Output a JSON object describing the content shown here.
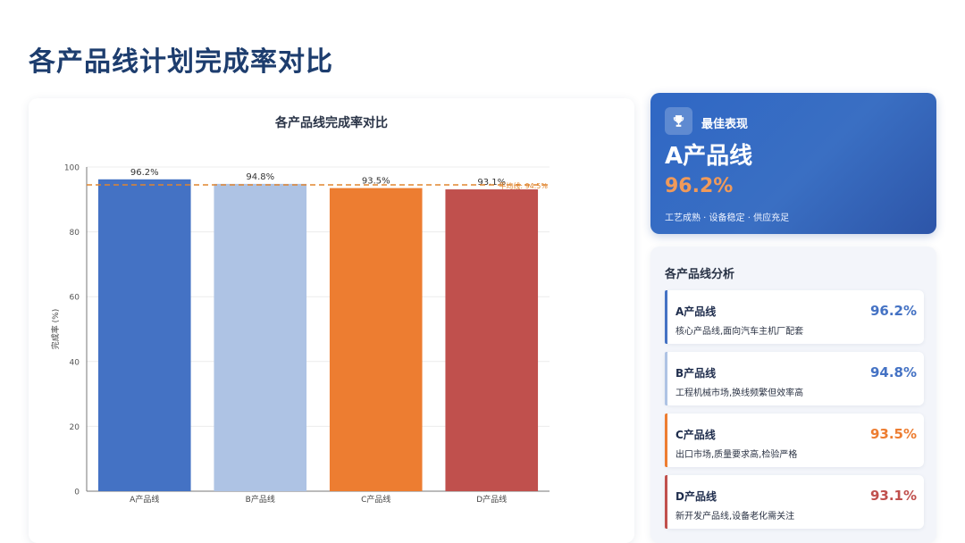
{
  "page_title": "各产品线计划完成率对比",
  "colors": {
    "A": "#4472c4",
    "B": "#aec3e4",
    "C": "#ed7d31",
    "D": "#c0504d",
    "target_line": "#e0852e"
  },
  "chart_data": {
    "type": "bar",
    "title": "各产品线完成率对比",
    "categories": [
      "A产品线",
      "B产品线",
      "C产品线",
      "D产品线"
    ],
    "values": [
      96.2,
      94.8,
      93.5,
      93.1
    ],
    "value_labels": [
      "96.2%",
      "94.8%",
      "93.5%",
      "93.1%"
    ],
    "ylabel": "完成率 (%)",
    "xlabel": "",
    "ylim": [
      0,
      100
    ],
    "yticks": [
      0,
      20,
      40,
      60,
      80,
      100
    ],
    "grid": true,
    "reference_line": {
      "value": 94.5,
      "label": "平均线: 94.5%",
      "style": "dashed"
    }
  },
  "best": {
    "icon": "trophy-icon",
    "label": "最佳表现",
    "name": "A产品线",
    "value": "96.2%",
    "desc": "工艺成熟 · 设备稳定 · 供应充足"
  },
  "analysis": {
    "title": "各产品线分析",
    "items": [
      {
        "name": "A产品线",
        "value": "96.2%",
        "desc": "核心产品线,面向汽车主机厂配套"
      },
      {
        "name": "B产品线",
        "value": "94.8%",
        "desc": "工程机械市场,换线频繁但效率高"
      },
      {
        "name": "C产品线",
        "value": "93.5%",
        "desc": "出口市场,质量要求高,检验严格"
      },
      {
        "name": "D产品线",
        "value": "93.1%",
        "desc": "新开发产品线,设备老化需关注"
      }
    ]
  }
}
